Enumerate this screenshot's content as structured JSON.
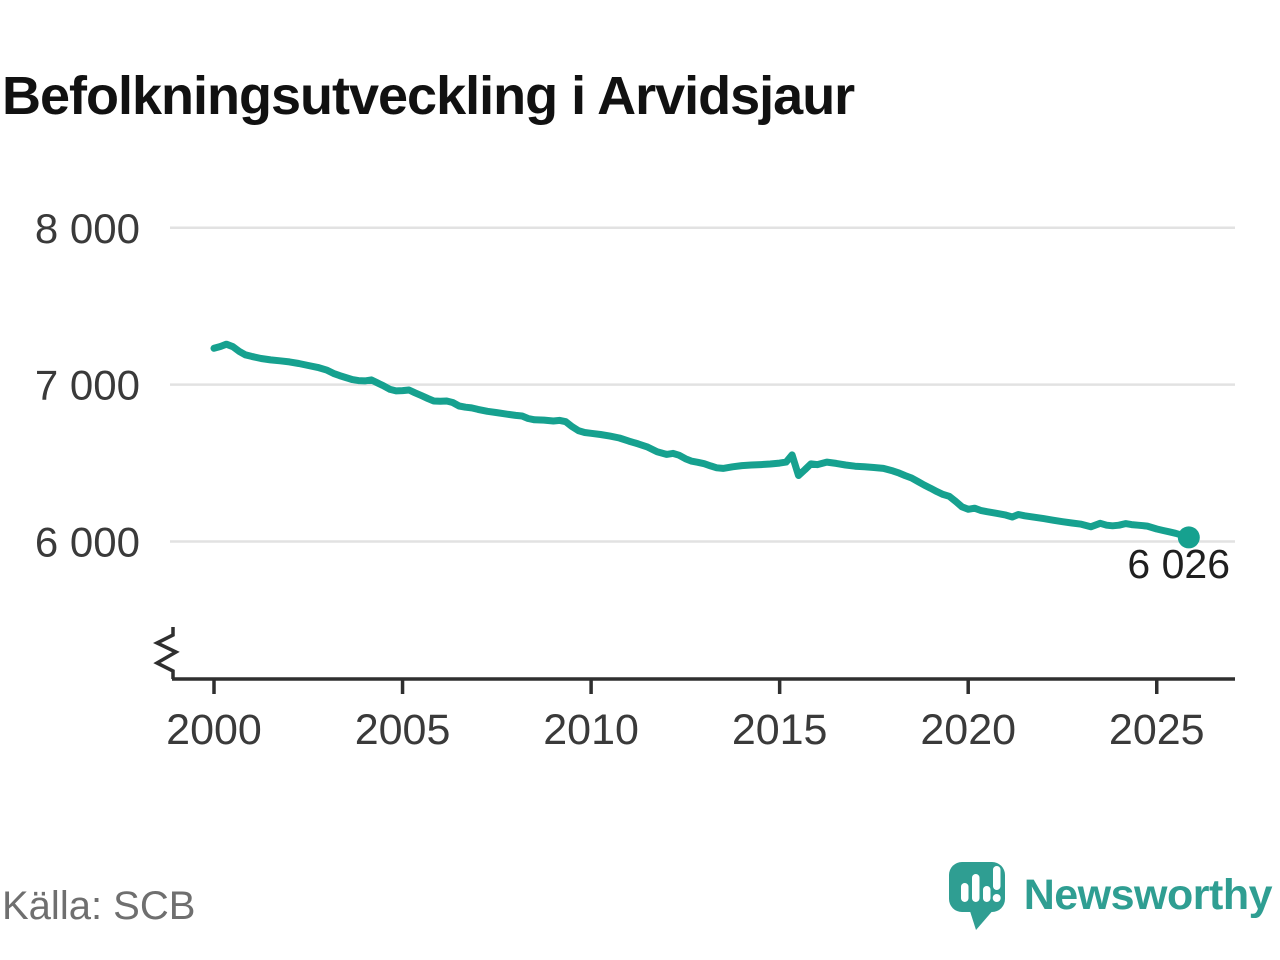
{
  "title": "Befolkningsutveckling i Arvidsjaur",
  "source": "Källa: SCB",
  "branding": {
    "name": "Newsworthy"
  },
  "colors": {
    "line": "#16A18F",
    "brand": "#2F9E92",
    "grid": "#E2E2E2",
    "axis": "#2F2F2F",
    "tick_text": "#3A3A3A",
    "end_label_text": "#1F1F1F",
    "source_text": "#6F6F6F"
  },
  "chart_data": {
    "type": "line",
    "title": "Befolkningsutveckling i Arvidsjaur",
    "xlabel": "",
    "ylabel": "",
    "x_ticks": [
      2000,
      2005,
      2010,
      2015,
      2020,
      2025
    ],
    "y_ticks": [
      {
        "value": 8000,
        "label": "8 000"
      },
      {
        "value": 7000,
        "label": "7 000"
      },
      {
        "value": 6000,
        "label": "6 000"
      }
    ],
    "xlim": [
      1999,
      2027.2
    ],
    "ylim_visible": [
      6000,
      8000
    ],
    "y_axis_break": true,
    "grid": "horizontal",
    "legend": "none",
    "end_label": "6 026",
    "end_value": 6026,
    "series": [
      {
        "name": "Befolkning",
        "points": [
          [
            2000.0,
            7232
          ],
          [
            2000.17,
            7243
          ],
          [
            2000.33,
            7258
          ],
          [
            2000.5,
            7242
          ],
          [
            2000.67,
            7212
          ],
          [
            2000.83,
            7190
          ],
          [
            2001.0,
            7180
          ],
          [
            2001.25,
            7167
          ],
          [
            2001.5,
            7158
          ],
          [
            2001.75,
            7152
          ],
          [
            2002.0,
            7145
          ],
          [
            2002.25,
            7135
          ],
          [
            2002.5,
            7122
          ],
          [
            2002.75,
            7110
          ],
          [
            2003.0,
            7092
          ],
          [
            2003.17,
            7072
          ],
          [
            2003.33,
            7058
          ],
          [
            2003.5,
            7045
          ],
          [
            2003.67,
            7032
          ],
          [
            2003.83,
            7026
          ],
          [
            2004.0,
            7024
          ],
          [
            2004.17,
            7030
          ],
          [
            2004.33,
            7012
          ],
          [
            2004.5,
            6992
          ],
          [
            2004.67,
            6970
          ],
          [
            2004.83,
            6960
          ],
          [
            2005.0,
            6962
          ],
          [
            2005.17,
            6966
          ],
          [
            2005.33,
            6948
          ],
          [
            2005.5,
            6930
          ],
          [
            2005.67,
            6912
          ],
          [
            2005.83,
            6896
          ],
          [
            2006.0,
            6894
          ],
          [
            2006.17,
            6896
          ],
          [
            2006.33,
            6886
          ],
          [
            2006.5,
            6864
          ],
          [
            2006.67,
            6856
          ],
          [
            2006.83,
            6852
          ],
          [
            2007.0,
            6842
          ],
          [
            2007.25,
            6830
          ],
          [
            2007.5,
            6822
          ],
          [
            2007.75,
            6812
          ],
          [
            2008.0,
            6804
          ],
          [
            2008.17,
            6800
          ],
          [
            2008.33,
            6784
          ],
          [
            2008.5,
            6776
          ],
          [
            2008.75,
            6774
          ],
          [
            2009.0,
            6768
          ],
          [
            2009.17,
            6772
          ],
          [
            2009.33,
            6764
          ],
          [
            2009.5,
            6732
          ],
          [
            2009.67,
            6706
          ],
          [
            2009.83,
            6695
          ],
          [
            2010.0,
            6690
          ],
          [
            2010.25,
            6682
          ],
          [
            2010.5,
            6672
          ],
          [
            2010.75,
            6660
          ],
          [
            2011.0,
            6640
          ],
          [
            2011.25,
            6622
          ],
          [
            2011.5,
            6602
          ],
          [
            2011.75,
            6572
          ],
          [
            2012.0,
            6555
          ],
          [
            2012.17,
            6562
          ],
          [
            2012.33,
            6550
          ],
          [
            2012.5,
            6528
          ],
          [
            2012.67,
            6512
          ],
          [
            2012.83,
            6505
          ],
          [
            2013.0,
            6496
          ],
          [
            2013.17,
            6482
          ],
          [
            2013.33,
            6470
          ],
          [
            2013.5,
            6466
          ],
          [
            2013.75,
            6476
          ],
          [
            2014.0,
            6484
          ],
          [
            2014.25,
            6488
          ],
          [
            2014.5,
            6490
          ],
          [
            2014.75,
            6494
          ],
          [
            2015.0,
            6500
          ],
          [
            2015.17,
            6506
          ],
          [
            2015.33,
            6552
          ],
          [
            2015.5,
            6421
          ],
          [
            2015.67,
            6458
          ],
          [
            2015.83,
            6495
          ],
          [
            2016.0,
            6490
          ],
          [
            2016.25,
            6506
          ],
          [
            2016.5,
            6498
          ],
          [
            2016.75,
            6488
          ],
          [
            2017.0,
            6480
          ],
          [
            2017.25,
            6476
          ],
          [
            2017.5,
            6472
          ],
          [
            2017.75,
            6466
          ],
          [
            2018.0,
            6450
          ],
          [
            2018.17,
            6436
          ],
          [
            2018.33,
            6420
          ],
          [
            2018.5,
            6405
          ],
          [
            2018.67,
            6382
          ],
          [
            2018.83,
            6360
          ],
          [
            2019.0,
            6340
          ],
          [
            2019.17,
            6318
          ],
          [
            2019.33,
            6300
          ],
          [
            2019.5,
            6288
          ],
          [
            2019.67,
            6255
          ],
          [
            2019.83,
            6222
          ],
          [
            2020.0,
            6205
          ],
          [
            2020.17,
            6212
          ],
          [
            2020.33,
            6198
          ],
          [
            2020.5,
            6190
          ],
          [
            2020.75,
            6180
          ],
          [
            2021.0,
            6168
          ],
          [
            2021.17,
            6156
          ],
          [
            2021.33,
            6172
          ],
          [
            2021.5,
            6164
          ],
          [
            2021.75,
            6155
          ],
          [
            2022.0,
            6146
          ],
          [
            2022.25,
            6136
          ],
          [
            2022.5,
            6126
          ],
          [
            2022.75,
            6118
          ],
          [
            2023.0,
            6110
          ],
          [
            2023.25,
            6094
          ],
          [
            2023.5,
            6116
          ],
          [
            2023.67,
            6104
          ],
          [
            2023.83,
            6100
          ],
          [
            2024.0,
            6104
          ],
          [
            2024.17,
            6114
          ],
          [
            2024.33,
            6108
          ],
          [
            2024.5,
            6104
          ],
          [
            2024.75,
            6098
          ],
          [
            2025.0,
            6080
          ],
          [
            2025.17,
            6070
          ],
          [
            2025.33,
            6062
          ],
          [
            2025.5,
            6052
          ],
          [
            2025.67,
            6040
          ],
          [
            2025.85,
            6026
          ]
        ]
      }
    ]
  }
}
